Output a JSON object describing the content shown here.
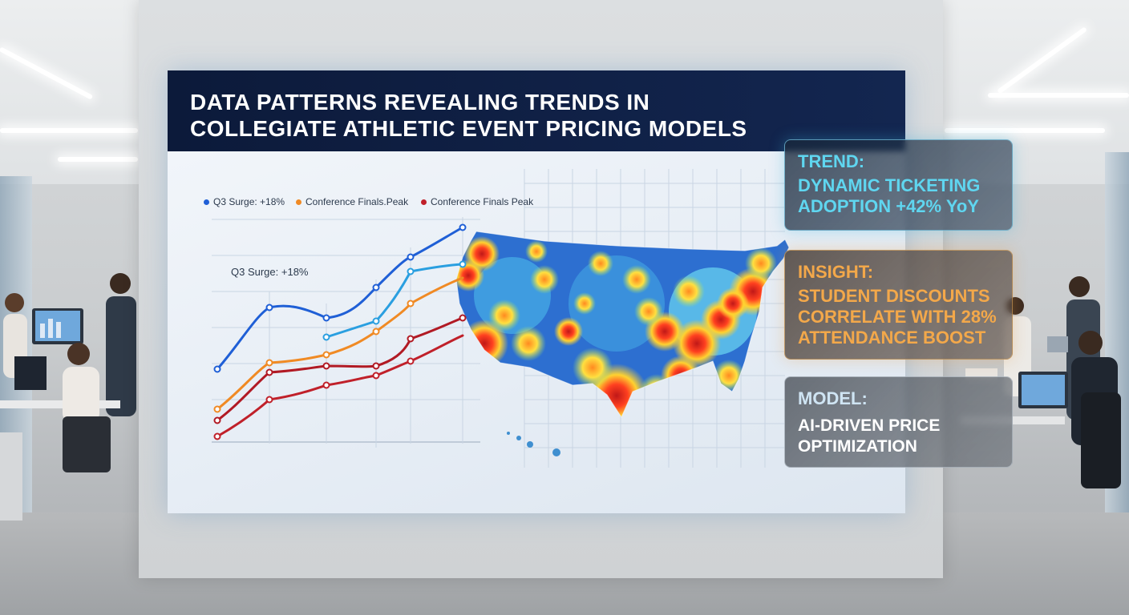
{
  "title": {
    "line1": "DATA PATTERNS REVEALING TRENDS IN",
    "line2": "COLLEGIATE ATHLETIC EVENT PRICING MODELS"
  },
  "legend": [
    {
      "label": "Q3 Surge: +18%",
      "color": "#1f5fd6"
    },
    {
      "label": "Conference Finals.Peak",
      "color": "#f08a24"
    },
    {
      "label": "Conference Finals Peak",
      "color": "#c0202a"
    }
  ],
  "annotation": "Q3 Surge: +18%",
  "cards": {
    "trend": {
      "line1": "TREND:",
      "line2": "DYNAMIC TICKETING",
      "line3": "ADOPTION +42% YoY"
    },
    "insight": {
      "line1": "INSIGHT:",
      "line2": "STUDENT DISCOUNTS",
      "line3": "CORRELATE WITH 28%",
      "line4": "ATTENDANCE BOOST"
    },
    "model": {
      "head": "MODEL:",
      "line1": "AI-DRIVEN PRICE",
      "line2": "OPTIMIZATION"
    }
  },
  "colors": {
    "title_bg": "#0c1a3a",
    "trend_accent": "#5fd6f0",
    "insight_accent": "#f3a84a",
    "line_blue": "#1f5fd6",
    "line_lightblue": "#2a9fe0",
    "line_orange": "#f08a24",
    "line_red": "#c0202a",
    "line_darkred": "#b11a24"
  }
}
